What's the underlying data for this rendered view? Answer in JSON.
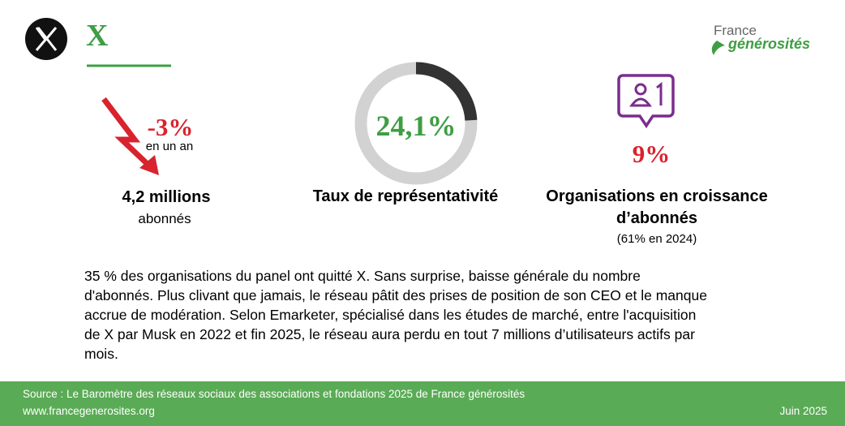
{
  "header": {
    "title": "X",
    "brand_top": "France",
    "brand_bottom": "générosités"
  },
  "stats": [
    {
      "change": "-3%",
      "change_note": "en un an",
      "value": "4,2 millions",
      "caption": "abonnés"
    },
    {
      "donut": {
        "value": 24.1,
        "label": "24,1%",
        "ylim": [
          0,
          100
        ]
      },
      "caption": "Taux de représentativité"
    },
    {
      "value": "9%",
      "caption_lines": [
        "Organisations en croissance",
        "d’abonnés"
      ],
      "note": "(61% en 2024)"
    }
  ],
  "body": {
    "lines": [
      "35 % des organisations du panel ont quitté X.  Sans surprise, baisse générale du nombre",
      "d'abonnés. Plus clivant que jamais, le réseau pâtit des prises de position de son CEO et le manque",
      "accrue de modération. Selon Emarketer, spécialisé dans les études de marché, entre l'acquisition",
      "de X par Musk en 2022 et fin 2025, le réseau aura perdu en tout 7 millions d’utilisateurs actifs par",
      "mois."
    ]
  },
  "footer": {
    "source": "Source : Le Baromètre des réseaux sociaux des associations et fondations 2025 de France générosités",
    "url": "www.francegenerosites.org",
    "date": "Juin 2025"
  }
}
